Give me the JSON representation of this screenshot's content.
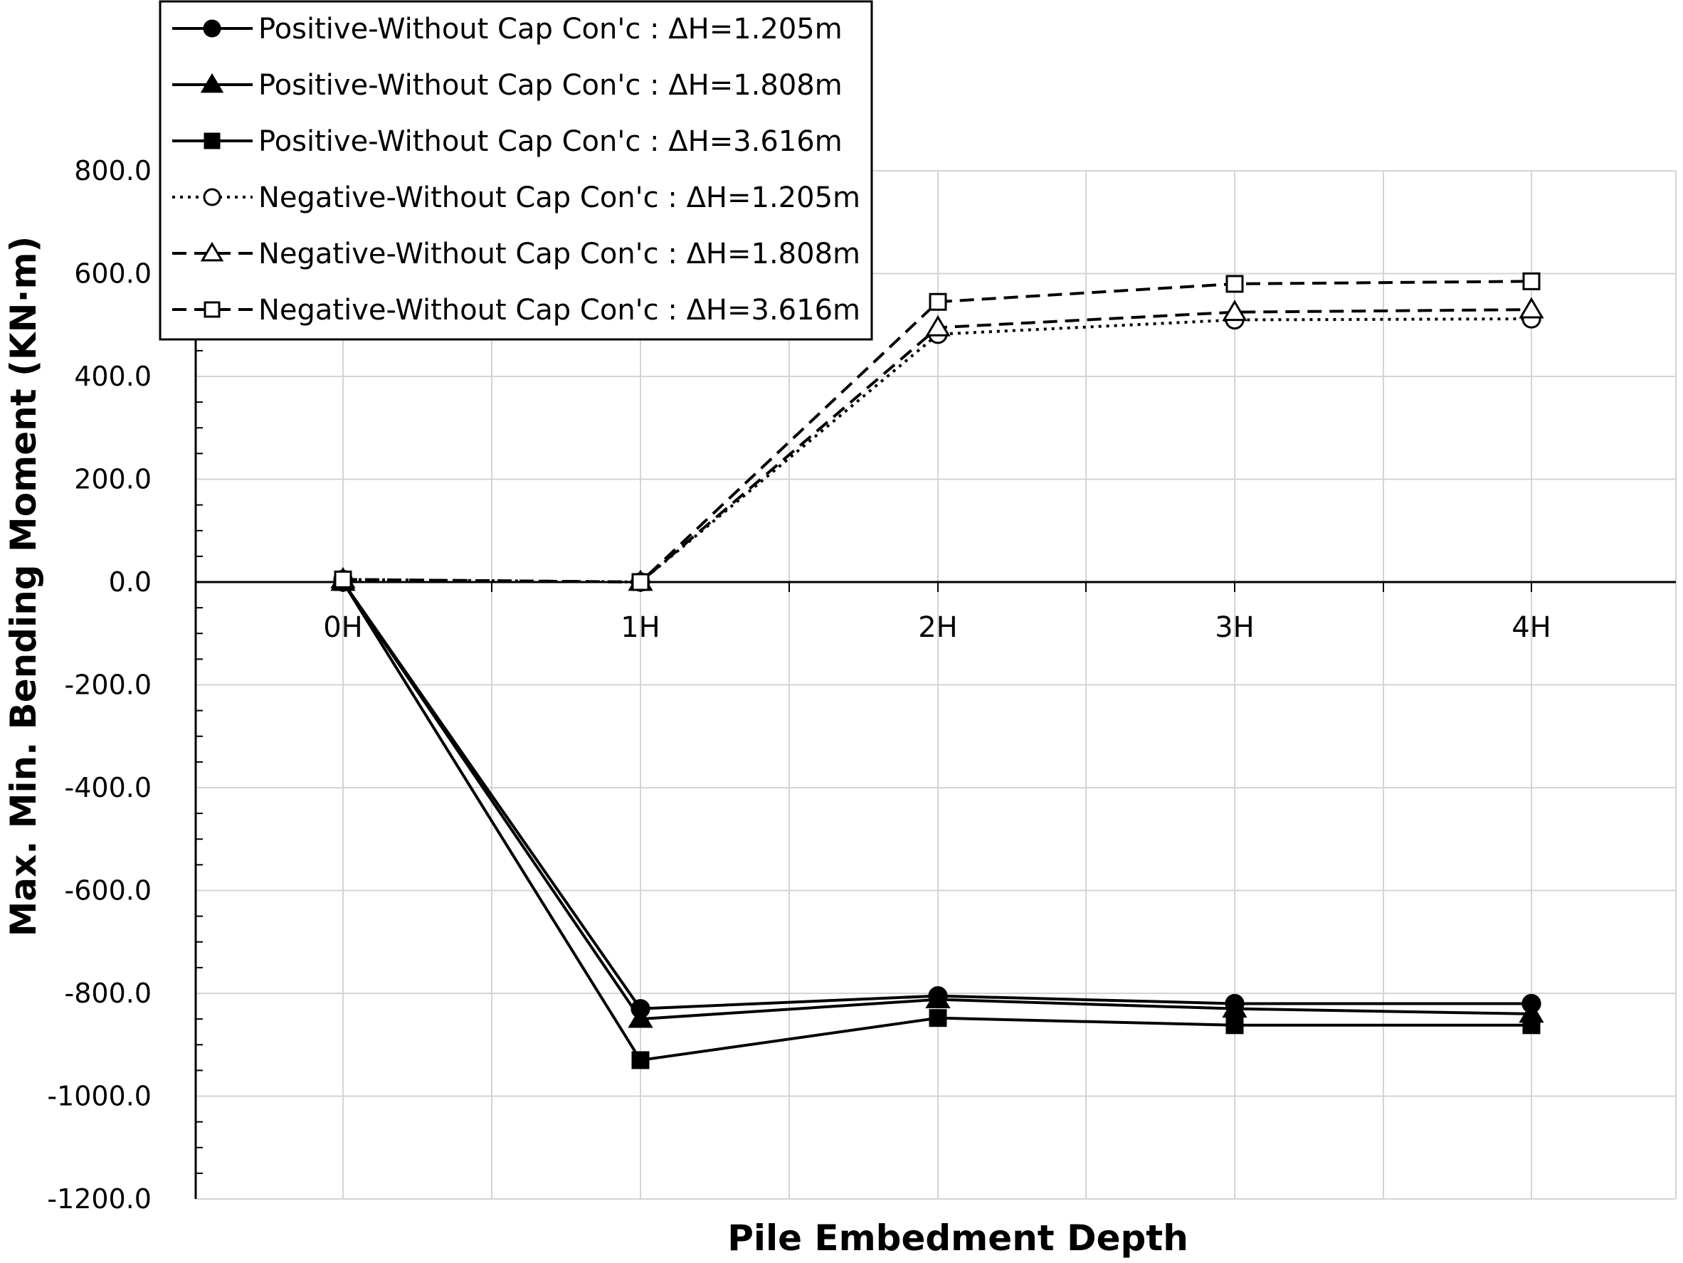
{
  "chart_data": {
    "type": "line",
    "title": "",
    "xlabel": "Pile Embedment Depth",
    "ylabel": "Max. Min. Bending Moment (KN·m)",
    "categories": [
      "0H",
      "1H",
      "2H",
      "3H",
      "4H"
    ],
    "ylim": [
      -1200,
      800
    ],
    "y_ticks": [
      800,
      600,
      400,
      200,
      0,
      -200,
      -400,
      -600,
      -800,
      -1000,
      -1200
    ],
    "y_tick_labels": [
      "800.0",
      "600.0",
      "400.0",
      "200.0",
      "0.0",
      "-200.0",
      "-400.0",
      "-600.0",
      "-800.0",
      "-1000.0",
      "-1200.0"
    ],
    "grid": true,
    "legend_position": "top-left",
    "series": [
      {
        "name": "Positive-Without Cap Con'c : ΔH=1.205m",
        "values": [
          0,
          -830,
          -805,
          -820,
          -820
        ],
        "marker": "circle",
        "filled": true,
        "dash": "solid",
        "color": "#000000"
      },
      {
        "name": "Positive-Without Cap Con'c : ΔH=1.808m",
        "values": [
          0,
          -850,
          -812,
          -830,
          -840
        ],
        "marker": "triangle",
        "filled": true,
        "dash": "solid",
        "color": "#000000"
      },
      {
        "name": "Positive-Without Cap Con'c : ΔH=3.616m",
        "values": [
          0,
          -930,
          -848,
          -862,
          -862
        ],
        "marker": "square",
        "filled": true,
        "dash": "solid",
        "color": "#000000"
      },
      {
        "name": "Negative-Without Cap Con'c : ΔH=1.205m",
        "values": [
          5,
          0,
          482,
          510,
          512
        ],
        "marker": "circle",
        "filled": false,
        "dash": "dotted",
        "color": "#000000"
      },
      {
        "name": "Negative-Without Cap Con'c : ΔH=1.808m",
        "values": [
          5,
          0,
          495,
          525,
          530
        ],
        "marker": "triangle",
        "filled": false,
        "dash": "dashed",
        "color": "#000000"
      },
      {
        "name": "Negative-Without Cap Con'c : ΔH=3.616m",
        "values": [
          5,
          0,
          545,
          580,
          585
        ],
        "marker": "square",
        "filled": false,
        "dash": "dashed",
        "color": "#000000"
      }
    ]
  }
}
